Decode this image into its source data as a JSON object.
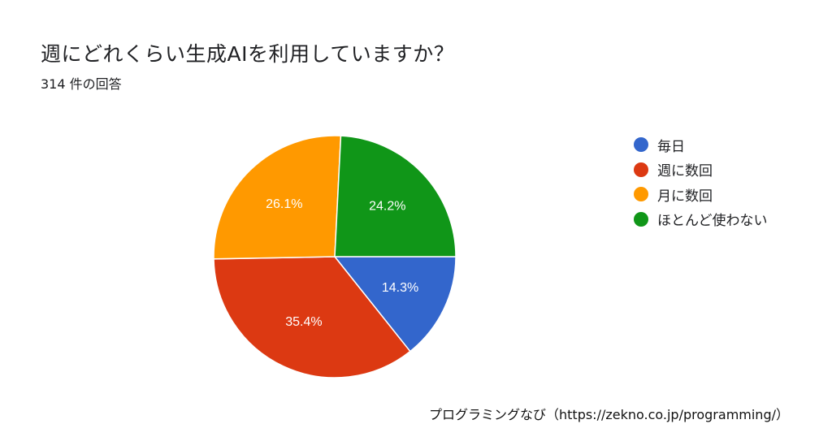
{
  "header": {
    "title": "週にどれくらい生成AIを利用していますか？",
    "response_count": "314 件の回答"
  },
  "chart_data": {
    "type": "pie",
    "title": "週にどれくらい生成AIを利用していますか？",
    "categories": [
      "毎日",
      "週に数回",
      "月に数回",
      "ほとんど使わない"
    ],
    "values": [
      14.3,
      35.4,
      26.1,
      24.2
    ],
    "labels": [
      "14.3%",
      "35.4%",
      "26.1%",
      "24.2%"
    ],
    "colors": [
      "#3366cc",
      "#dc3912",
      "#ff9900",
      "#109618"
    ],
    "legend_placement": "right",
    "start": "3 o'clock, clockwise"
  },
  "footer": {
    "credit": "プログラミングなび（https://zekno.co.jp/programming/）"
  }
}
